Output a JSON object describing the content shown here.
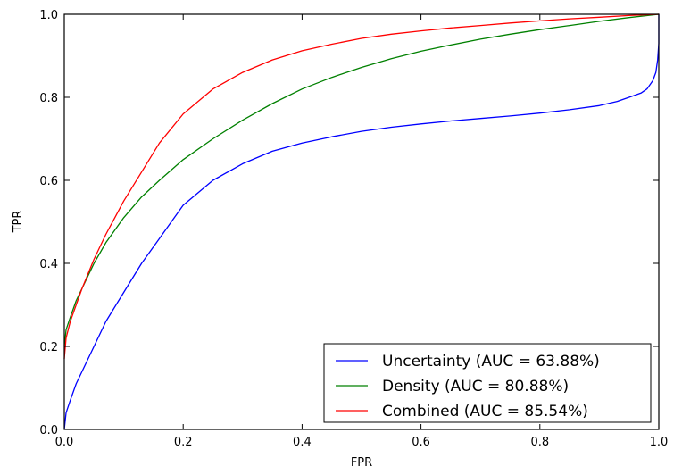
{
  "chart_data": {
    "type": "line",
    "title": "",
    "xlabel": "FPR",
    "ylabel": "TPR",
    "xlim": [
      0.0,
      1.0
    ],
    "ylim": [
      0.0,
      1.0
    ],
    "xticks": [
      "0.0",
      "0.2",
      "0.4",
      "0.6",
      "0.8",
      "1.0"
    ],
    "yticks": [
      "0.0",
      "0.2",
      "0.4",
      "0.6",
      "0.8",
      "1.0"
    ],
    "grid": false,
    "legend_position": "lower-right",
    "series": [
      {
        "name": "Uncertainty (AUC = 63.88%)",
        "color": "#0000ff",
        "x": [
          0.0,
          0.003,
          0.01,
          0.02,
          0.03,
          0.05,
          0.07,
          0.1,
          0.13,
          0.16,
          0.2,
          0.25,
          0.3,
          0.35,
          0.4,
          0.45,
          0.5,
          0.55,
          0.6,
          0.65,
          0.7,
          0.75,
          0.8,
          0.85,
          0.9,
          0.93,
          0.95,
          0.97,
          0.98,
          0.99,
          0.995,
          0.998,
          1.0,
          1.0
        ],
        "y": [
          0.0,
          0.04,
          0.07,
          0.11,
          0.14,
          0.2,
          0.26,
          0.33,
          0.4,
          0.46,
          0.54,
          0.6,
          0.64,
          0.67,
          0.69,
          0.705,
          0.718,
          0.728,
          0.736,
          0.743,
          0.749,
          0.755,
          0.762,
          0.77,
          0.78,
          0.79,
          0.8,
          0.81,
          0.82,
          0.84,
          0.86,
          0.89,
          0.93,
          1.0
        ]
      },
      {
        "name": "Density (AUC = 80.88%)",
        "color": "#008000",
        "x": [
          0.0,
          0.003,
          0.01,
          0.02,
          0.03,
          0.05,
          0.07,
          0.1,
          0.13,
          0.16,
          0.2,
          0.25,
          0.3,
          0.35,
          0.4,
          0.45,
          0.5,
          0.55,
          0.6,
          0.65,
          0.7,
          0.75,
          0.8,
          0.85,
          0.9,
          0.95,
          1.0
        ],
        "y": [
          0.2,
          0.24,
          0.27,
          0.31,
          0.34,
          0.4,
          0.45,
          0.51,
          0.56,
          0.6,
          0.65,
          0.7,
          0.745,
          0.785,
          0.82,
          0.848,
          0.872,
          0.893,
          0.911,
          0.926,
          0.94,
          0.952,
          0.963,
          0.973,
          0.983,
          0.992,
          1.0
        ]
      },
      {
        "name": "Combined (AUC = 85.54%)",
        "color": "#ff0000",
        "x": [
          0.0,
          0.003,
          0.01,
          0.02,
          0.03,
          0.05,
          0.07,
          0.1,
          0.13,
          0.16,
          0.2,
          0.25,
          0.3,
          0.35,
          0.4,
          0.45,
          0.5,
          0.55,
          0.6,
          0.65,
          0.7,
          0.75,
          0.8,
          0.85,
          0.9,
          0.95,
          1.0
        ],
        "y": [
          0.17,
          0.22,
          0.26,
          0.3,
          0.34,
          0.41,
          0.47,
          0.55,
          0.62,
          0.69,
          0.76,
          0.82,
          0.86,
          0.89,
          0.912,
          0.928,
          0.942,
          0.952,
          0.96,
          0.967,
          0.973,
          0.979,
          0.984,
          0.989,
          0.993,
          0.997,
          1.0
        ]
      }
    ]
  }
}
